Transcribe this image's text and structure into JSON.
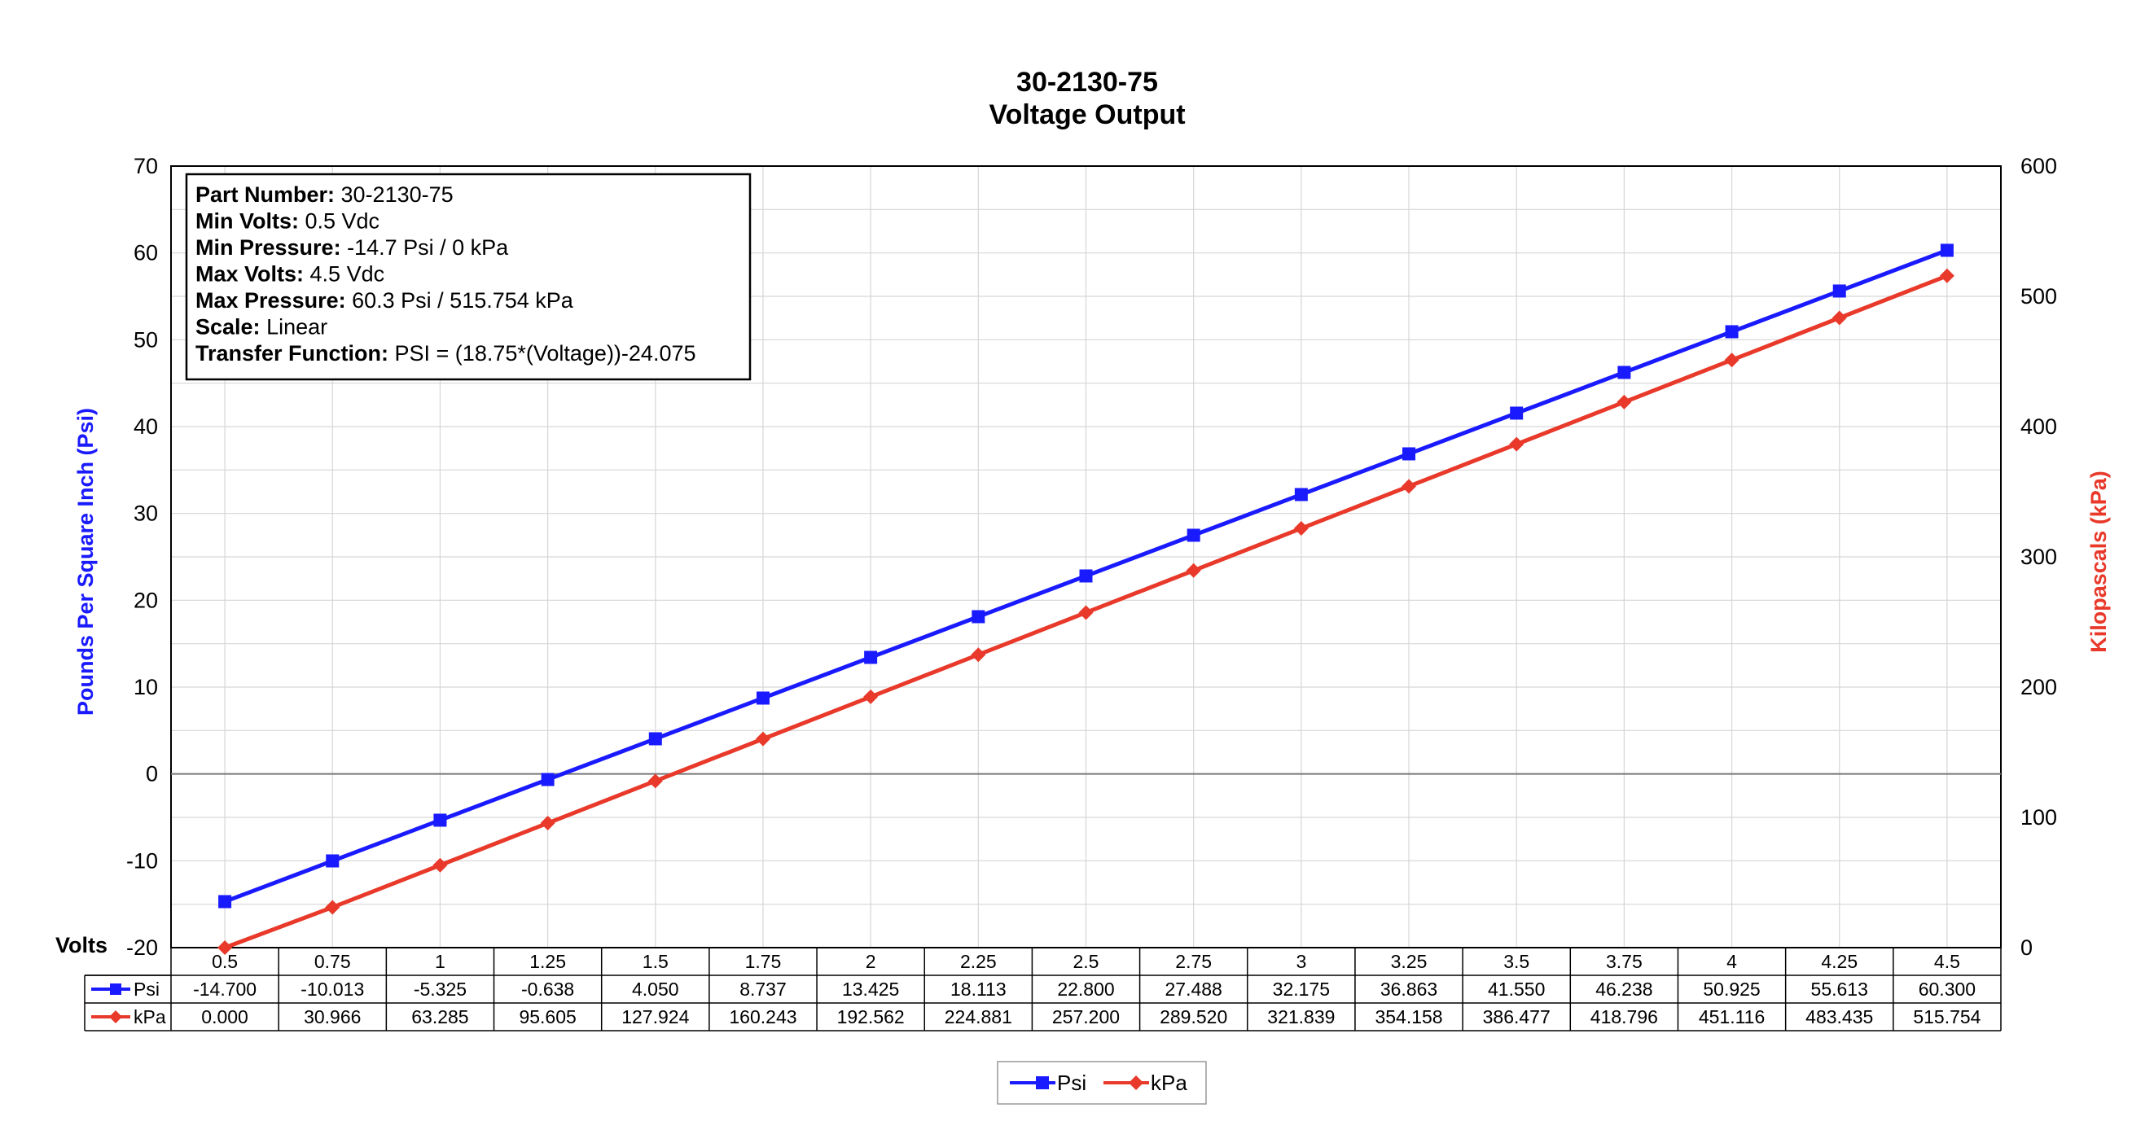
{
  "chart_data": {
    "type": "line",
    "title": "30-2130-75",
    "subtitle": "Voltage Output",
    "xlabel": "Volts",
    "ylabel": "Pounds Per Square Inch (Psi)",
    "y2label": "Kilopascals (kPa)",
    "ylim": [
      -20,
      70
    ],
    "y2lim": [
      0,
      600
    ],
    "yticks": [
      -20,
      -10,
      0,
      10,
      20,
      30,
      40,
      50,
      60,
      70
    ],
    "y2ticks": [
      0,
      100,
      200,
      300,
      400,
      500,
      600
    ],
    "grid": true,
    "legend_position": "bottom-center",
    "categories": [
      "0.5",
      "0.75",
      "1",
      "1.25",
      "1.5",
      "1.75",
      "2",
      "2.25",
      "2.5",
      "2.75",
      "3",
      "3.25",
      "3.5",
      "3.75",
      "4",
      "4.25",
      "4.5"
    ],
    "series": [
      {
        "name": "Psi",
        "axis": "left",
        "color": "#1a1aff",
        "marker": "square",
        "values": [
          -14.7,
          -10.013,
          -5.325,
          -0.638,
          4.05,
          8.737,
          13.425,
          18.113,
          22.8,
          27.488,
          32.175,
          36.863,
          41.55,
          46.238,
          50.925,
          55.613,
          60.3
        ],
        "labels": [
          "-14.700",
          "-10.013",
          "-5.325",
          "-0.638",
          "4.050",
          "8.737",
          "13.425",
          "18.113",
          "22.800",
          "27.488",
          "32.175",
          "36.863",
          "41.550",
          "46.238",
          "50.925",
          "55.613",
          "60.300"
        ]
      },
      {
        "name": "kPa",
        "axis": "right",
        "color": "#e8392a",
        "marker": "diamond",
        "values": [
          0.0,
          30.966,
          63.285,
          95.605,
          127.924,
          160.243,
          192.562,
          224.881,
          257.2,
          289.52,
          321.839,
          354.158,
          386.477,
          418.796,
          451.116,
          483.435,
          515.754
        ],
        "labels": [
          "0.000",
          "30.966",
          "63.285",
          "95.605",
          "127.924",
          "160.243",
          "192.562",
          "224.881",
          "257.200",
          "289.520",
          "321.839",
          "354.158",
          "386.477",
          "418.796",
          "451.116",
          "483.435",
          "515.754"
        ]
      }
    ],
    "info_box": [
      {
        "label": "Part Number:",
        "value": " 30-2130-75"
      },
      {
        "label": "Min Volts:",
        "value": " 0.5 Vdc"
      },
      {
        "label": "Min Pressure:",
        "value": " -14.7 Psi / 0 kPa"
      },
      {
        "label": "Max Volts:",
        "value": " 4.5 Vdc"
      },
      {
        "label": "Max Pressure:",
        "value": " 60.3 Psi / 515.754 kPa"
      },
      {
        "label": "Scale:",
        "value": " Linear"
      },
      {
        "label": "Transfer Function:",
        "value": " PSI = (18.75*(Voltage))-24.075"
      }
    ]
  }
}
